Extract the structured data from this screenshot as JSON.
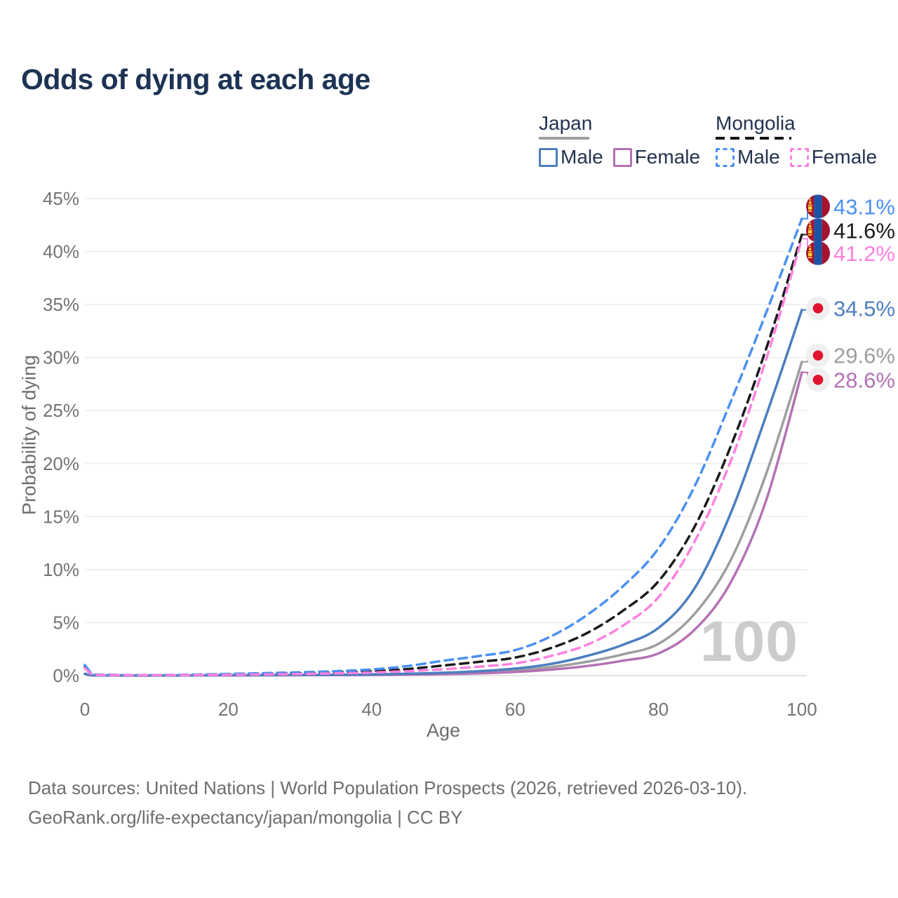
{
  "title": "Odds of dying at each age",
  "legend": {
    "japan": {
      "country": "Japan",
      "male_label": "Male",
      "female_label": "Female"
    },
    "mongolia": {
      "country": "Mongolia",
      "male_label": "Male",
      "female_label": "Female"
    }
  },
  "watermark": "100",
  "footer": {
    "line1": "Data sources: United Nations | World Population Prospects (2026, retrieved 2026-03-10).",
    "line2": "GeoRank.org/life-expectancy/japan/mongolia | CC BY"
  },
  "colors": {
    "title": "#1c3354",
    "legend_text": "#22334e",
    "axis_text": "#737373",
    "grid": "#ededed",
    "grid_zero": "#e2e2e2",
    "watermark": "#cccccc",
    "japan_male": "#4c7ec0",
    "japan_female": "#b471b5",
    "japan_both": "#9e9e9e",
    "mongolia_male": "#4a90f2",
    "mongolia_female": "#ff80df",
    "mongolia_both": "#1a1a1a",
    "flag_japan_bg": "#efefef",
    "flag_japan_sun": "#e0142f",
    "flag_mongolia_red": "#a6122f",
    "flag_mongolia_blue": "#1b54a6",
    "flag_mongolia_yellow": "#ffd52e",
    "label_bracket": "#9e9e9e"
  },
  "chart_data": {
    "type": "line",
    "title": "Odds of dying at each age",
    "xlabel": "Age",
    "ylabel": "Probability of dying",
    "xlim": [
      0,
      100
    ],
    "ylim": [
      0,
      45
    ],
    "x_ticks": [
      0,
      20,
      40,
      60,
      80,
      100
    ],
    "y_ticks": [
      0,
      5,
      10,
      15,
      20,
      25,
      30,
      35,
      40,
      45
    ],
    "y_tick_suffix": "%",
    "grid": "horizontal-only",
    "legend_position": "top-right",
    "age_counter_watermark": "100",
    "series": [
      {
        "name": "Japan Both sexes",
        "country": "Japan",
        "sex": "both",
        "color": "#9e9e9e",
        "dash": false,
        "flag": "japan",
        "end_label": "29.6%",
        "end_value": 29.6,
        "label_pct": 30.2,
        "points": [
          [
            0,
            0.16
          ],
          [
            1,
            0.025
          ],
          [
            2,
            0.015
          ],
          [
            5,
            0.008
          ],
          [
            10,
            0.008
          ],
          [
            15,
            0.015
          ],
          [
            20,
            0.03
          ],
          [
            25,
            0.04
          ],
          [
            30,
            0.05
          ],
          [
            35,
            0.06
          ],
          [
            40,
            0.08
          ],
          [
            45,
            0.12
          ],
          [
            50,
            0.19
          ],
          [
            55,
            0.3
          ],
          [
            60,
            0.48
          ],
          [
            65,
            0.8
          ],
          [
            70,
            1.3
          ],
          [
            75,
            2.0
          ],
          [
            80,
            3.0
          ],
          [
            85,
            5.8
          ],
          [
            90,
            10.8
          ],
          [
            95,
            19.0
          ],
          [
            100,
            29.6
          ]
        ]
      },
      {
        "name": "Japan Female",
        "country": "Japan",
        "sex": "female",
        "color": "#b471b5",
        "dash": false,
        "flag": "japan",
        "end_label": "28.6%",
        "end_value": 28.6,
        "label_pct": 27.9,
        "points": [
          [
            0,
            0.15
          ],
          [
            1,
            0.02
          ],
          [
            2,
            0.012
          ],
          [
            5,
            0.007
          ],
          [
            10,
            0.006
          ],
          [
            15,
            0.01
          ],
          [
            20,
            0.02
          ],
          [
            25,
            0.03
          ],
          [
            30,
            0.04
          ],
          [
            35,
            0.05
          ],
          [
            40,
            0.06
          ],
          [
            45,
            0.09
          ],
          [
            50,
            0.13
          ],
          [
            55,
            0.21
          ],
          [
            60,
            0.34
          ],
          [
            65,
            0.56
          ],
          [
            70,
            0.9
          ],
          [
            75,
            1.4
          ],
          [
            80,
            2.1
          ],
          [
            85,
            4.3
          ],
          [
            90,
            8.7
          ],
          [
            95,
            16.5
          ],
          [
            100,
            28.6
          ]
        ]
      },
      {
        "name": "Japan Male",
        "country": "Japan",
        "sex": "male",
        "color": "#4c7ec0",
        "dash": false,
        "flag": "japan",
        "end_label": "34.5%",
        "end_value": 34.5,
        "label_pct": 34.65,
        "points": [
          [
            0,
            0.18
          ],
          [
            1,
            0.03
          ],
          [
            2,
            0.02
          ],
          [
            5,
            0.012
          ],
          [
            10,
            0.012
          ],
          [
            15,
            0.025
          ],
          [
            20,
            0.045
          ],
          [
            25,
            0.055
          ],
          [
            30,
            0.065
          ],
          [
            35,
            0.085
          ],
          [
            40,
            0.11
          ],
          [
            45,
            0.17
          ],
          [
            50,
            0.27
          ],
          [
            55,
            0.42
          ],
          [
            60,
            0.66
          ],
          [
            65,
            1.1
          ],
          [
            70,
            1.85
          ],
          [
            75,
            2.9
          ],
          [
            80,
            4.5
          ],
          [
            85,
            8.2
          ],
          [
            90,
            15.2
          ],
          [
            95,
            24.5
          ],
          [
            100,
            34.5
          ]
        ]
      },
      {
        "name": "Mongolia Both sexes",
        "country": "Mongolia",
        "sex": "both",
        "color": "#1a1a1a",
        "dash": true,
        "flag": "mongolia",
        "end_label": "41.6%",
        "end_value": 41.6,
        "label_pct": 42.0,
        "points": [
          [
            0,
            0.85
          ],
          [
            1,
            0.15
          ],
          [
            2,
            0.08
          ],
          [
            5,
            0.05
          ],
          [
            10,
            0.04
          ],
          [
            15,
            0.07
          ],
          [
            20,
            0.12
          ],
          [
            25,
            0.17
          ],
          [
            30,
            0.23
          ],
          [
            35,
            0.31
          ],
          [
            40,
            0.42
          ],
          [
            45,
            0.62
          ],
          [
            50,
            0.95
          ],
          [
            55,
            1.3
          ],
          [
            60,
            1.7
          ],
          [
            65,
            2.6
          ],
          [
            70,
            4.0
          ],
          [
            75,
            6.1
          ],
          [
            80,
            8.9
          ],
          [
            85,
            14.0
          ],
          [
            90,
            21.5
          ],
          [
            95,
            30.8
          ],
          [
            100,
            41.6
          ]
        ]
      },
      {
        "name": "Mongolia Male",
        "country": "Mongolia",
        "sex": "male",
        "color": "#4a90f2",
        "dash": true,
        "flag": "mongolia",
        "end_label": "43.1%",
        "end_value": 43.1,
        "label_pct": 44.25,
        "points": [
          [
            0,
            1.0
          ],
          [
            1,
            0.18
          ],
          [
            2,
            0.1
          ],
          [
            5,
            0.06
          ],
          [
            10,
            0.05
          ],
          [
            15,
            0.09
          ],
          [
            20,
            0.16
          ],
          [
            25,
            0.23
          ],
          [
            30,
            0.31
          ],
          [
            35,
            0.42
          ],
          [
            40,
            0.58
          ],
          [
            45,
            0.9
          ],
          [
            50,
            1.4
          ],
          [
            55,
            1.85
          ],
          [
            60,
            2.4
          ],
          [
            65,
            3.7
          ],
          [
            70,
            5.7
          ],
          [
            75,
            8.4
          ],
          [
            80,
            12.0
          ],
          [
            85,
            17.8
          ],
          [
            90,
            25.7
          ],
          [
            95,
            34.2
          ],
          [
            100,
            43.1
          ]
        ]
      },
      {
        "name": "Mongolia Female",
        "country": "Mongolia",
        "sex": "female",
        "color": "#ff80df",
        "dash": true,
        "flag": "mongolia",
        "end_label": "41.2%",
        "end_value": 41.2,
        "label_pct": 39.85,
        "points": [
          [
            0,
            0.7
          ],
          [
            1,
            0.12
          ],
          [
            2,
            0.06
          ],
          [
            5,
            0.04
          ],
          [
            10,
            0.03
          ],
          [
            15,
            0.05
          ],
          [
            20,
            0.08
          ],
          [
            25,
            0.11
          ],
          [
            30,
            0.15
          ],
          [
            35,
            0.21
          ],
          [
            40,
            0.29
          ],
          [
            45,
            0.42
          ],
          [
            50,
            0.6
          ],
          [
            55,
            0.85
          ],
          [
            60,
            1.15
          ],
          [
            65,
            1.85
          ],
          [
            70,
            2.9
          ],
          [
            75,
            4.7
          ],
          [
            80,
            7.4
          ],
          [
            85,
            12.6
          ],
          [
            90,
            20.1
          ],
          [
            95,
            29.8
          ],
          [
            100,
            41.2
          ]
        ]
      }
    ]
  }
}
